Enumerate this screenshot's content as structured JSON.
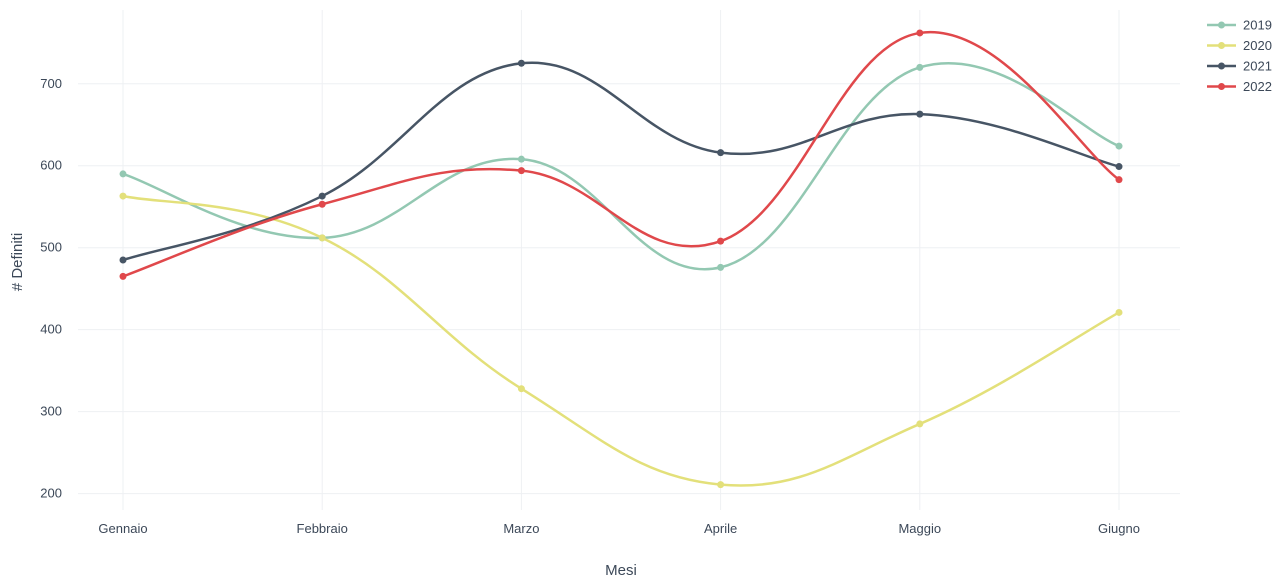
{
  "chart_data": {
    "type": "line",
    "title": "",
    "xlabel": "Mesi",
    "ylabel": "# Definiti",
    "categories": [
      "Gennaio",
      "Febbraio",
      "Marzo",
      "Aprile",
      "Maggio",
      "Giugno"
    ],
    "ylim": [
      180,
      790
    ],
    "yticks": [
      200,
      300,
      400,
      500,
      600,
      700
    ],
    "grid": true,
    "legend_position": "top-right",
    "series": [
      {
        "name": "2019",
        "color": "#93c8b2",
        "values": [
          590,
          512,
          608,
          476,
          720,
          624
        ]
      },
      {
        "name": "2020",
        "color": "#e3e07a",
        "values": [
          563,
          512,
          328,
          211,
          285,
          421
        ]
      },
      {
        "name": "2021",
        "color": "#475565",
        "values": [
          485,
          563,
          725,
          616,
          663,
          599
        ]
      },
      {
        "name": "2022",
        "color": "#e0484b",
        "values": [
          465,
          553,
          594,
          508,
          762,
          583
        ]
      }
    ]
  }
}
